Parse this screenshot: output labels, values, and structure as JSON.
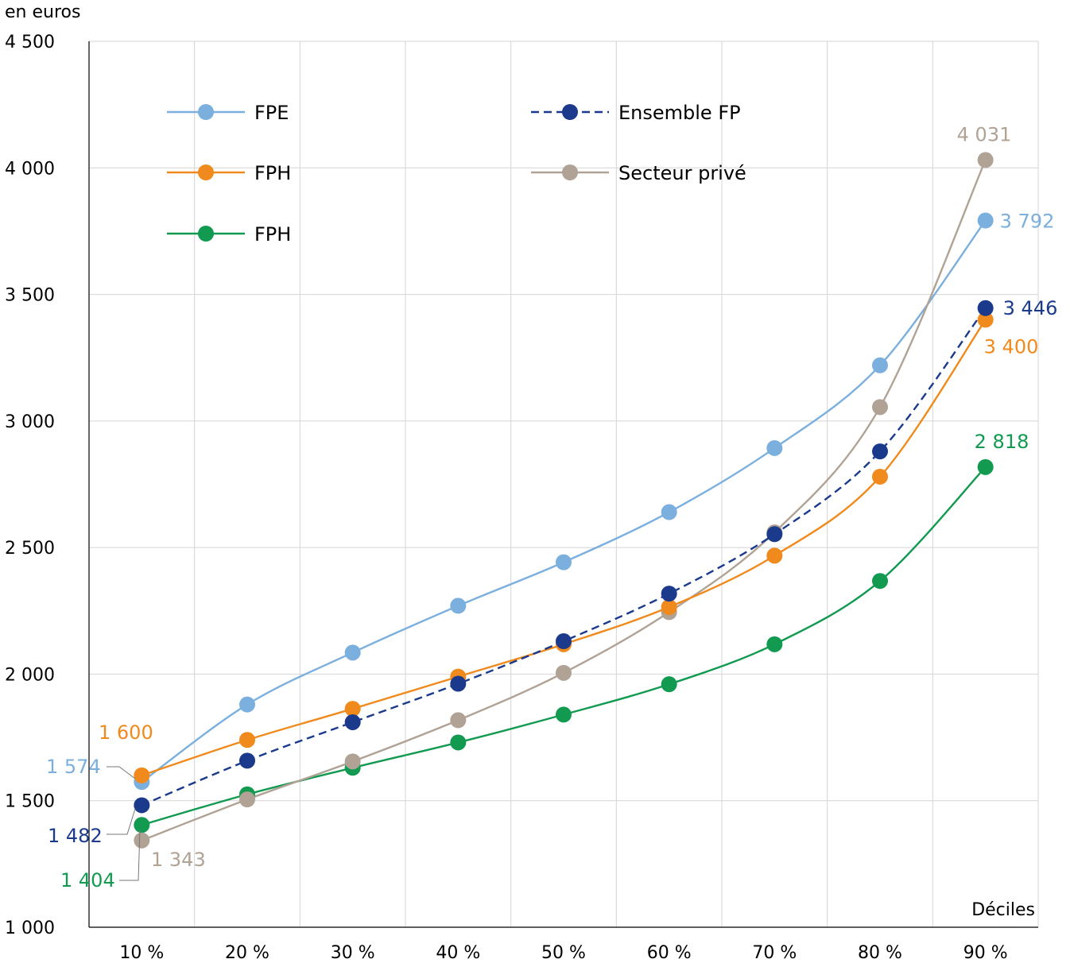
{
  "chart_data": {
    "type": "line",
    "ylabel": "en euros",
    "xlabel": "Déciles",
    "categories": [
      "10 %",
      "20 %",
      "30 %",
      "40 %",
      "50 %",
      "60 %",
      "70 %",
      "80 %",
      "90 %"
    ],
    "ylim": [
      1000,
      4500
    ],
    "yticks": [
      1000,
      1500,
      2000,
      2500,
      3000,
      3500,
      4000,
      4500
    ],
    "ytick_labels": [
      "1 000",
      "1 500",
      "2 000",
      "2 500",
      "3 000",
      "3 500",
      "4 000",
      "4 500"
    ],
    "grid": true,
    "legend_position": "top-left",
    "series": [
      {
        "name": "FPE",
        "color": "#7BAFDE",
        "dashed": false,
        "values": [
          1574,
          1880,
          2085,
          2270,
          2442,
          2640,
          2893,
          3220,
          3792
        ],
        "first_label": "1 574",
        "last_label": "3 792"
      },
      {
        "name": "FPH",
        "color": "#F08A1C",
        "dashed": false,
        "values": [
          1600,
          1740,
          1863,
          1990,
          2118,
          2265,
          2468,
          2780,
          3400
        ],
        "first_label": "1 600",
        "last_label": "3 400"
      },
      {
        "name": "FPH",
        "color": "#119A50",
        "dashed": false,
        "values": [
          1404,
          1525,
          1630,
          1730,
          1840,
          1960,
          2118,
          2368,
          2818
        ],
        "first_label": "1 404",
        "last_label": "2 818"
      },
      {
        "name": "Ensemble FP",
        "color": "#1B3A8C",
        "dashed": true,
        "values": [
          1482,
          1658,
          1810,
          1962,
          2130,
          2318,
          2553,
          2880,
          3446
        ],
        "first_label": "1 482",
        "last_label": "3 446"
      },
      {
        "name": "Secteur privé",
        "color": "#B0A295",
        "dashed": false,
        "values": [
          1343,
          1505,
          1655,
          1818,
          2005,
          2245,
          2560,
          3055,
          4031
        ],
        "first_label": "1 343",
        "last_label": "4 031"
      }
    ]
  }
}
